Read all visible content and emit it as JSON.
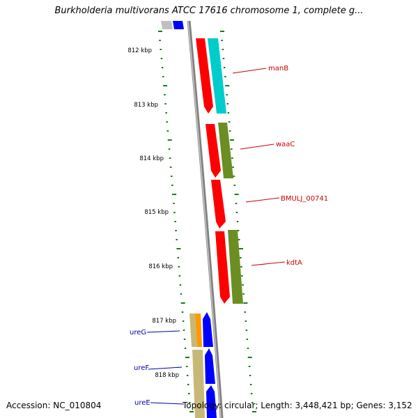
{
  "title": "Burkholderia multivorans ATCC 17616 chromosome 1, complete g...",
  "footer": {
    "accession": "Accession: NC_010804",
    "topology": "Topology: circular; Length: 3,448,421 bp; Genes: 3,152"
  },
  "colors": {
    "backbone": "#808080",
    "ticks": "#1a7a1a",
    "cds_red": "#ff0000",
    "cds_cyan": "#00cccc",
    "cds_olive": "#6b8e23",
    "cds_blue": "#0000ff",
    "cds_khaki": "#c8b878",
    "cds_orange": "#ff9900",
    "label_red": "#cc0000",
    "label_blue": "#0000aa"
  },
  "scale_labels": [
    "812 kbp",
    "813 kbp",
    "814 kbp",
    "815 kbp",
    "816 kbp",
    "817 kbp",
    "818 kbp"
  ],
  "gene_labels": {
    "right": [
      "manB",
      "waaC",
      "BMULJ_00741",
      "kdtA"
    ],
    "left": [
      "ureG",
      "ureF",
      "ureE"
    ]
  }
}
